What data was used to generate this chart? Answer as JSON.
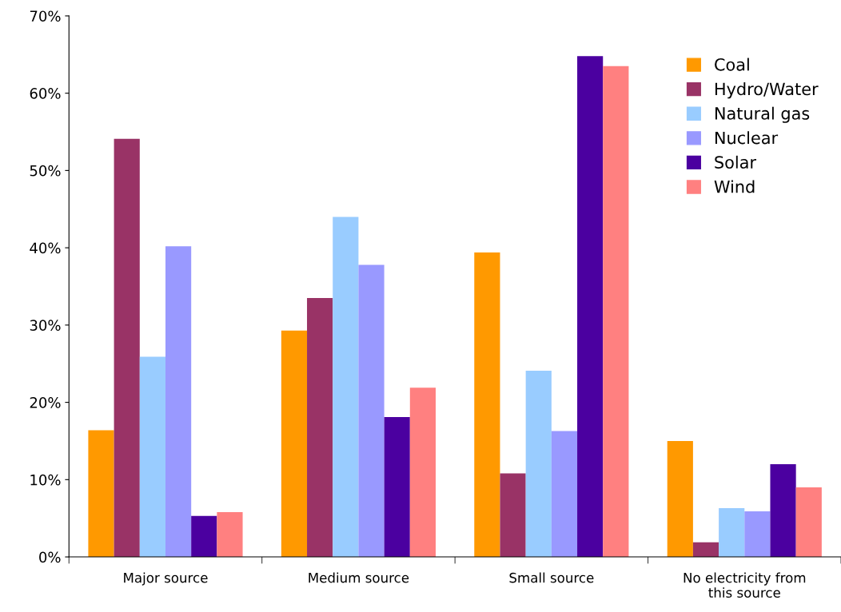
{
  "chart_data": {
    "type": "bar",
    "categories": [
      "Major source",
      "Medium source",
      "Small source",
      "No electricity from\nthis source"
    ],
    "series": [
      {
        "name": "Coal",
        "color": "#ff9900",
        "values": [
          16.4,
          29.3,
          39.4,
          15.0
        ]
      },
      {
        "name": "Hydro/Water",
        "color": "#993366",
        "values": [
          54.1,
          33.5,
          10.8,
          1.9
        ]
      },
      {
        "name": "Natural gas",
        "color": "#99ccff",
        "values": [
          25.9,
          44.0,
          24.1,
          6.3
        ]
      },
      {
        "name": "Nuclear",
        "color": "#9999ff",
        "values": [
          40.2,
          37.8,
          16.3,
          5.9
        ]
      },
      {
        "name": "Solar",
        "color": "#4b00a0",
        "values": [
          5.3,
          18.1,
          64.8,
          12.0
        ]
      },
      {
        "name": "Wind",
        "color": "#ff8080",
        "values": [
          5.8,
          21.9,
          63.5,
          9.0
        ]
      }
    ],
    "ylim": [
      0,
      70
    ],
    "yticks": [
      {
        "value": 0,
        "label": "0%"
      },
      {
        "value": 10,
        "label": "10%"
      },
      {
        "value": 20,
        "label": "20%"
      },
      {
        "value": 30,
        "label": "30%"
      },
      {
        "value": 40,
        "label": "40%"
      },
      {
        "value": 50,
        "label": "50%"
      },
      {
        "value": 60,
        "label": "60%"
      },
      {
        "value": 70,
        "label": "70%"
      }
    ],
    "grid": false,
    "legend": "top right"
  }
}
